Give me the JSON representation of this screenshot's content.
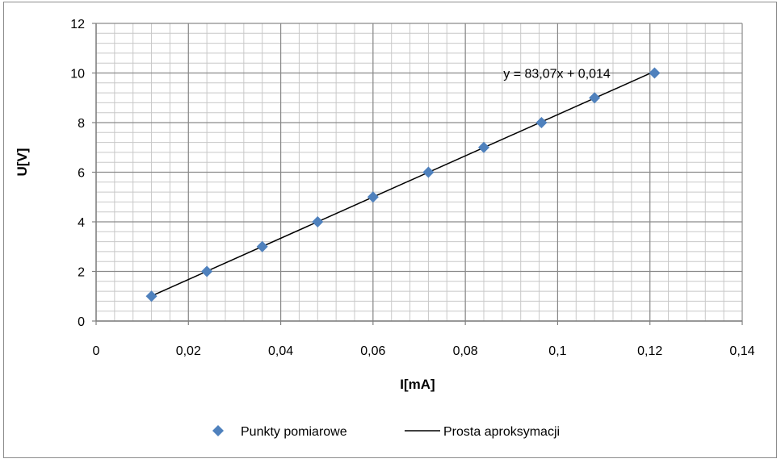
{
  "chart_data": {
    "type": "scatter",
    "title": "",
    "xlabel": "I[mA]",
    "ylabel": "U[V]",
    "xlim": [
      0,
      0.14
    ],
    "ylim": [
      0,
      12
    ],
    "x_ticks": [
      "0",
      "0,02",
      "0,04",
      "0,06",
      "0,08",
      "0,1",
      "0,12",
      "0,14"
    ],
    "y_ticks": [
      "0",
      "2",
      "4",
      "6",
      "8",
      "10",
      "12"
    ],
    "x_tick_values": [
      0,
      0.02,
      0.04,
      0.06,
      0.08,
      0.1,
      0.12,
      0.14
    ],
    "y_tick_values": [
      0,
      2,
      4,
      6,
      8,
      10,
      12
    ],
    "grid": true,
    "minor_grid": true,
    "legend_position": "bottom",
    "series": [
      {
        "name": "Punkty pomiarowe",
        "kind": "scatter",
        "marker": "diamond",
        "color": "#4f81bd",
        "x": [
          0.012,
          0.024,
          0.036,
          0.048,
          0.06,
          0.072,
          0.084,
          0.0965,
          0.108,
          0.121
        ],
        "y": [
          1,
          2,
          3,
          4,
          5,
          6,
          7,
          8,
          9,
          10
        ]
      },
      {
        "name": "Prosta aproksymacji",
        "kind": "line",
        "color": "#000000",
        "slope": 83.07,
        "intercept": 0.014,
        "x_range": [
          0.012,
          0.121
        ]
      }
    ],
    "annotations": [
      {
        "text": "y = 83,07x + 0,014",
        "x": 0.09,
        "y": 10
      }
    ]
  }
}
